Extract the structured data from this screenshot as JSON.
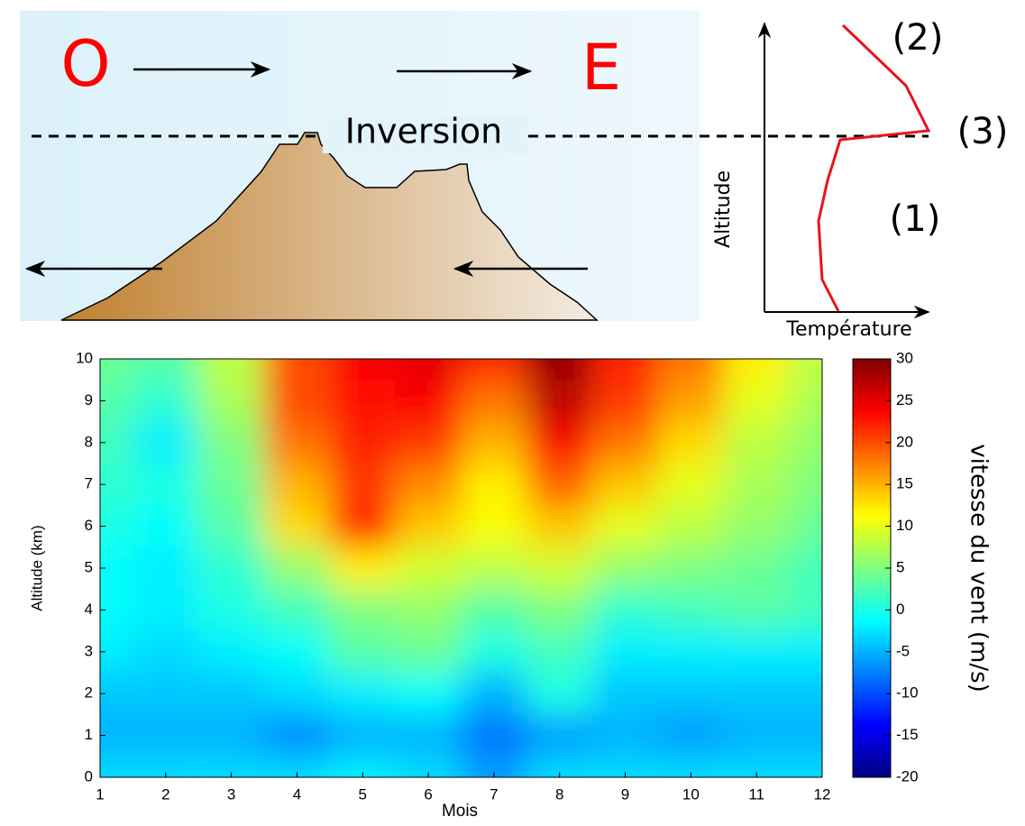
{
  "diagram": {
    "left_label": "O",
    "right_label": "E",
    "inversion_label": "Inversion",
    "profile_y_label": "Altitude",
    "profile_x_label": "Température",
    "layers": [
      "(2)",
      "(3)",
      "(1)"
    ]
  },
  "chart_data": {
    "type": "heatmap",
    "xlabel": "Mois",
    "ylabel": "Altitude (km)",
    "x": [
      1,
      2,
      3,
      4,
      5,
      6,
      7,
      8,
      9,
      10,
      11,
      12
    ],
    "y": [
      0,
      1,
      2,
      3,
      4,
      5,
      6,
      7,
      8,
      9,
      10
    ],
    "z": [
      [
        -3,
        -3,
        -3,
        -3,
        -2,
        -3,
        -6,
        -3,
        -3,
        -3,
        -3,
        -3
      ],
      [
        -5,
        -5,
        -5,
        -7,
        -5,
        -5,
        -8,
        -6,
        -5,
        -6,
        -5,
        -5
      ],
      [
        -4,
        -4,
        -4,
        -3,
        -2,
        -1,
        -5,
        0,
        -4,
        -4,
        -4,
        -4
      ],
      [
        -2,
        -3,
        -2,
        -1,
        3,
        4,
        0,
        2,
        -2,
        -2,
        -2,
        -2
      ],
      [
        -1,
        -2,
        0,
        2,
        5,
        6,
        3,
        5,
        1,
        2,
        3,
        2
      ],
      [
        -1,
        -2,
        1,
        6,
        12,
        9,
        8,
        9,
        6,
        5,
        4,
        2
      ],
      [
        0,
        -1,
        3,
        13,
        22,
        14,
        11,
        14,
        10,
        8,
        6,
        4
      ],
      [
        1,
        0,
        4,
        15,
        21,
        17,
        12,
        19,
        14,
        10,
        7,
        5
      ],
      [
        2,
        -2,
        5,
        18,
        22,
        21,
        15,
        24,
        18,
        13,
        8,
        6
      ],
      [
        3,
        1,
        7,
        20,
        23,
        24,
        18,
        27,
        21,
        16,
        10,
        7
      ],
      [
        4,
        3,
        8,
        20,
        24,
        25,
        22,
        29,
        22,
        18,
        12,
        8
      ]
    ],
    "xlim": [
      1,
      12
    ],
    "ylim": [
      0,
      10
    ],
    "xticks": [
      1,
      2,
      3,
      4,
      5,
      6,
      7,
      8,
      9,
      10,
      11,
      12
    ],
    "yticks": [
      0,
      1,
      2,
      3,
      4,
      5,
      6,
      7,
      8,
      9,
      10
    ],
    "colormap": "jet",
    "colorbar": {
      "label": "vitesse du vent (m/s)",
      "lim": [
        -20,
        30
      ],
      "ticks": [
        -20,
        -15,
        -10,
        -5,
        0,
        5,
        10,
        15,
        20,
        25,
        30
      ]
    }
  }
}
